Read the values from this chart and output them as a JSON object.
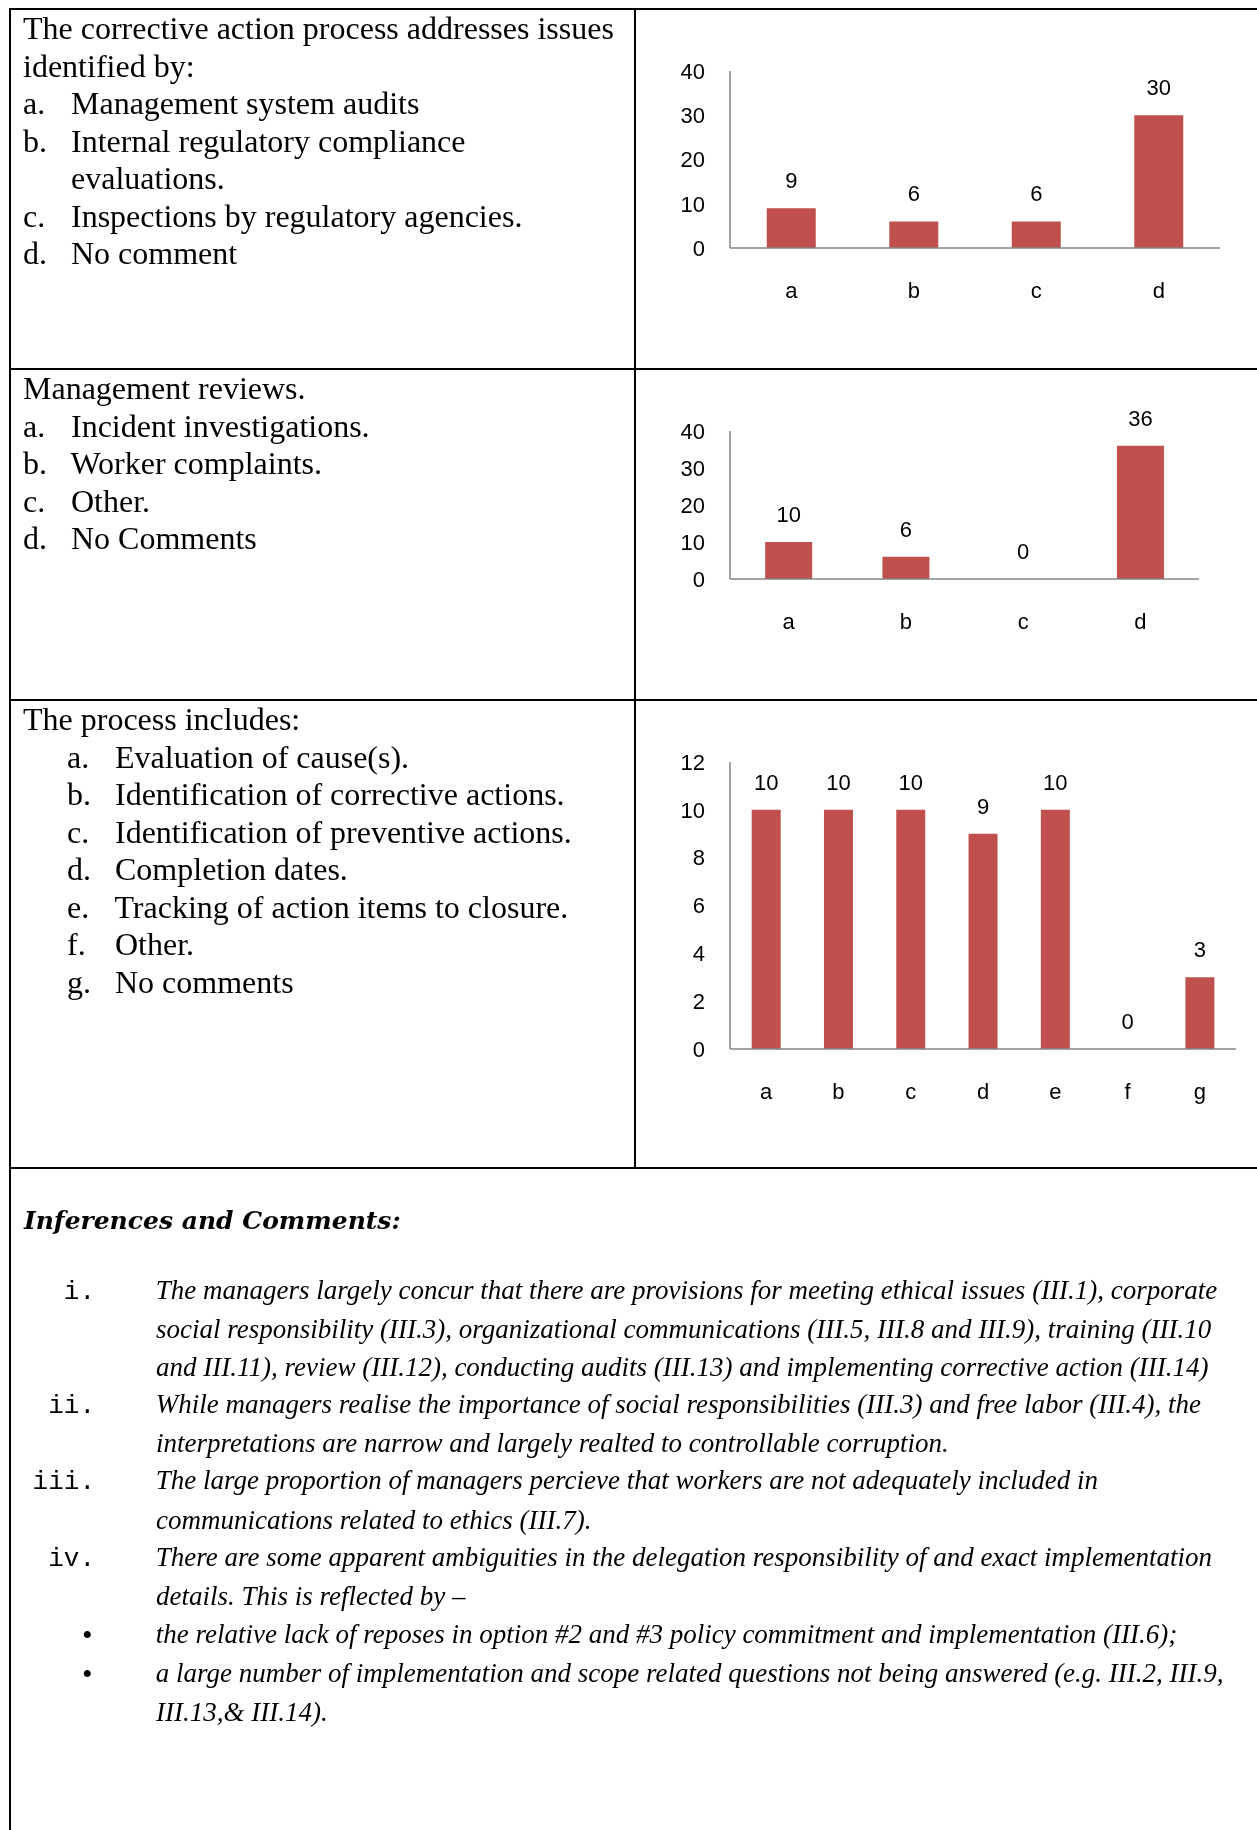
{
  "chart_data": [
    {
      "type": "other",
      "title": "The corrective action process addresses issues identified by:",
      "annotations": [
        "a. Management system audits",
        "b. Internal regulatory compliance evaluations.",
        "c. Inspections by regulatory agencies.",
        "d. No comment"
      ]
    },
    {
      "type": "bar",
      "categories": [
        "a",
        "b",
        "c",
        "d"
      ],
      "values": [
        9,
        6,
        6,
        30
      ],
      "color": "#c0504d",
      "ylim": [
        0,
        40
      ],
      "yticks": [
        0,
        10,
        20,
        30,
        40
      ],
      "data_labels": true
    },
    {
      "type": "other",
      "title": "Management reviews.",
      "annotations": [
        "a. Incident investigations.",
        "b. Worker complaints.",
        "c. Other.",
        "d. No Comments"
      ]
    },
    {
      "type": "bar",
      "categories": [
        "a",
        "b",
        "c",
        "d"
      ],
      "values": [
        10,
        6,
        0,
        36
      ],
      "color": "#c0504d",
      "ylim": [
        0,
        40
      ],
      "yticks": [
        0,
        10,
        20,
        30,
        40
      ],
      "data_labels": true
    },
    {
      "type": "other",
      "title": "The process includes:",
      "annotations": [
        "a. Evaluation of cause(s).",
        "b. Identification of corrective actions.",
        "c. Identification of preventive actions.",
        "d. Completion dates.",
        "e. Tracking of action items to closure.",
        "f. Other.",
        "g. No comments"
      ]
    },
    {
      "type": "bar",
      "categories": [
        "a",
        "b",
        "c",
        "d",
        "e",
        "f",
        "g"
      ],
      "values": [
        10,
        10,
        10,
        9,
        10,
        0,
        3
      ],
      "color": "#c0504d",
      "ylim": [
        0,
        12
      ],
      "yticks": [
        0,
        2,
        4,
        6,
        8,
        10,
        12
      ],
      "data_labels": true
    },
    {
      "type": "other",
      "title": "Inferences and Comments:",
      "annotations": [
        "i. The managers largely concur that there are provisions for meeting ethical issues (III.1), corporate social responsibility (III.3), organizational communications (III.5, III.8 and III.9), training (III.10 and III.11), review (III.12), conducting audits (III.13) and implementing corrective action (III.14)",
        "ii. While managers realise the importance of social responsibilities (III.3) and free labor (III.4), the interpretations are narrow and largely realted to controllable corruption.",
        "iii. The large proportion of managers percieve that workers are not adequately included in communications related to ethics (III.7).",
        "iv. There are some apparent ambiguities in the delegation responsibility of and exact implementation details. This is reflected by –",
        "• the relative lack of reposes in option #2 and #3 policy commitment and implementation (III.6);",
        "• a large number of implementation and scope related questions not being answered (e.g. III.2, III.9, III.13,& III.14)."
      ]
    }
  ]
}
